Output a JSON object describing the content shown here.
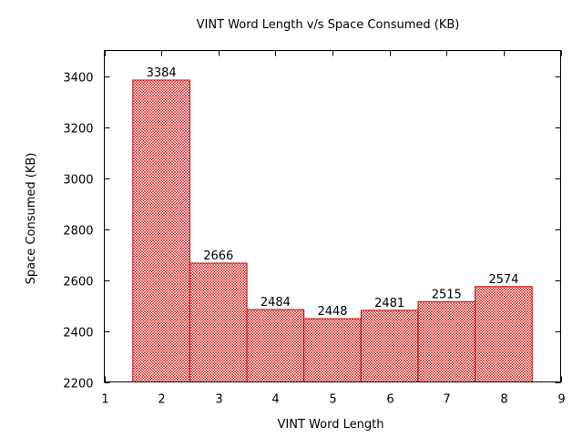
{
  "chart_data": {
    "type": "bar",
    "title": "VINT Word Length v/s Space Consumed (KB)",
    "xlabel": "VINT Word Length",
    "ylabel": "Space Consumed (KB)",
    "x": [
      2,
      3,
      4,
      5,
      6,
      7,
      8
    ],
    "values": [
      3384,
      2666,
      2484,
      2448,
      2481,
      2515,
      2574
    ],
    "data_labels": [
      "3384",
      "2666",
      "2484",
      "2448",
      "2481",
      "2515",
      "2574"
    ],
    "bar_width": 1,
    "xlim": [
      1,
      9
    ],
    "ylim": [
      2200,
      3500
    ],
    "xticks": [
      1,
      2,
      3,
      4,
      5,
      6,
      7,
      8,
      9
    ],
    "yticks": [
      2200,
      2400,
      2600,
      2800,
      3000,
      3200,
      3400
    ],
    "grid": false,
    "legend": "none",
    "colors": {
      "bar_stroke": "#cc0000",
      "bar_hatch": "#cc0000",
      "axis": "#000000"
    }
  }
}
